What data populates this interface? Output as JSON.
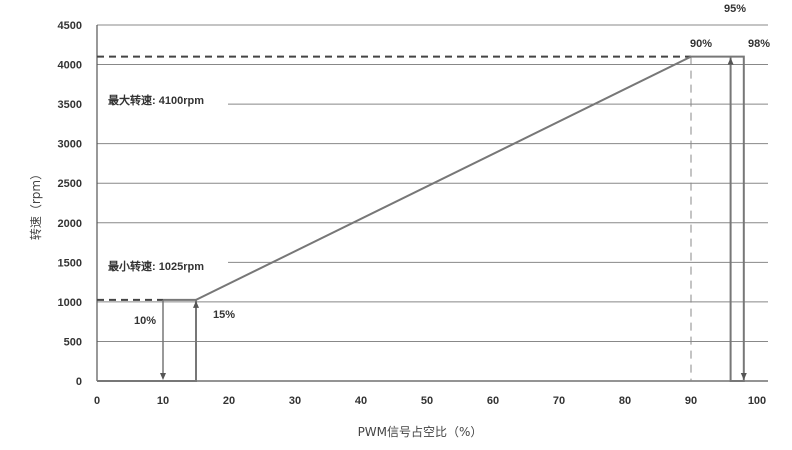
{
  "chart_data": {
    "type": "line",
    "xlabel": "PWM信号占空比（%）",
    "ylabel": "转速（rpm）",
    "xlim": [
      0,
      100
    ],
    "ylim": [
      0,
      4500
    ],
    "x_ticks": [
      "0",
      "10",
      "20",
      "30",
      "40",
      "50",
      "60",
      "70",
      "80",
      "90",
      "100"
    ],
    "y_ticks": [
      "0",
      "500",
      "1000",
      "1500",
      "2000",
      "2500",
      "3000",
      "3500",
      "4000",
      "4500"
    ],
    "grid": true,
    "series": [
      {
        "points": [
          {
            "x": 0,
            "y": 0
          },
          {
            "x": 15,
            "y": 0
          },
          {
            "x": 15,
            "y": 1025
          },
          {
            "x": 90,
            "y": 4100
          },
          {
            "x": 98,
            "y": 4100
          },
          {
            "x": 98,
            "y": 0
          },
          {
            "x": 96,
            "y": 0
          },
          {
            "x": 96,
            "y": 4100
          }
        ]
      }
    ],
    "step_up": {
      "x": 10,
      "y": 1025
    },
    "reference_lines": {
      "max_rpm": 4100,
      "min_rpm": 1025
    },
    "annotations": {
      "max_speed": "最大转速: 4100rpm",
      "min_speed": "最小转速: 1025rpm",
      "p10": "10%",
      "p15": "15%",
      "p90": "90%",
      "p95": "95%",
      "p98": "98%"
    },
    "colors": {
      "line": "#777777",
      "grid": "#888888",
      "dashed": "#444444",
      "text": "#333333"
    }
  }
}
